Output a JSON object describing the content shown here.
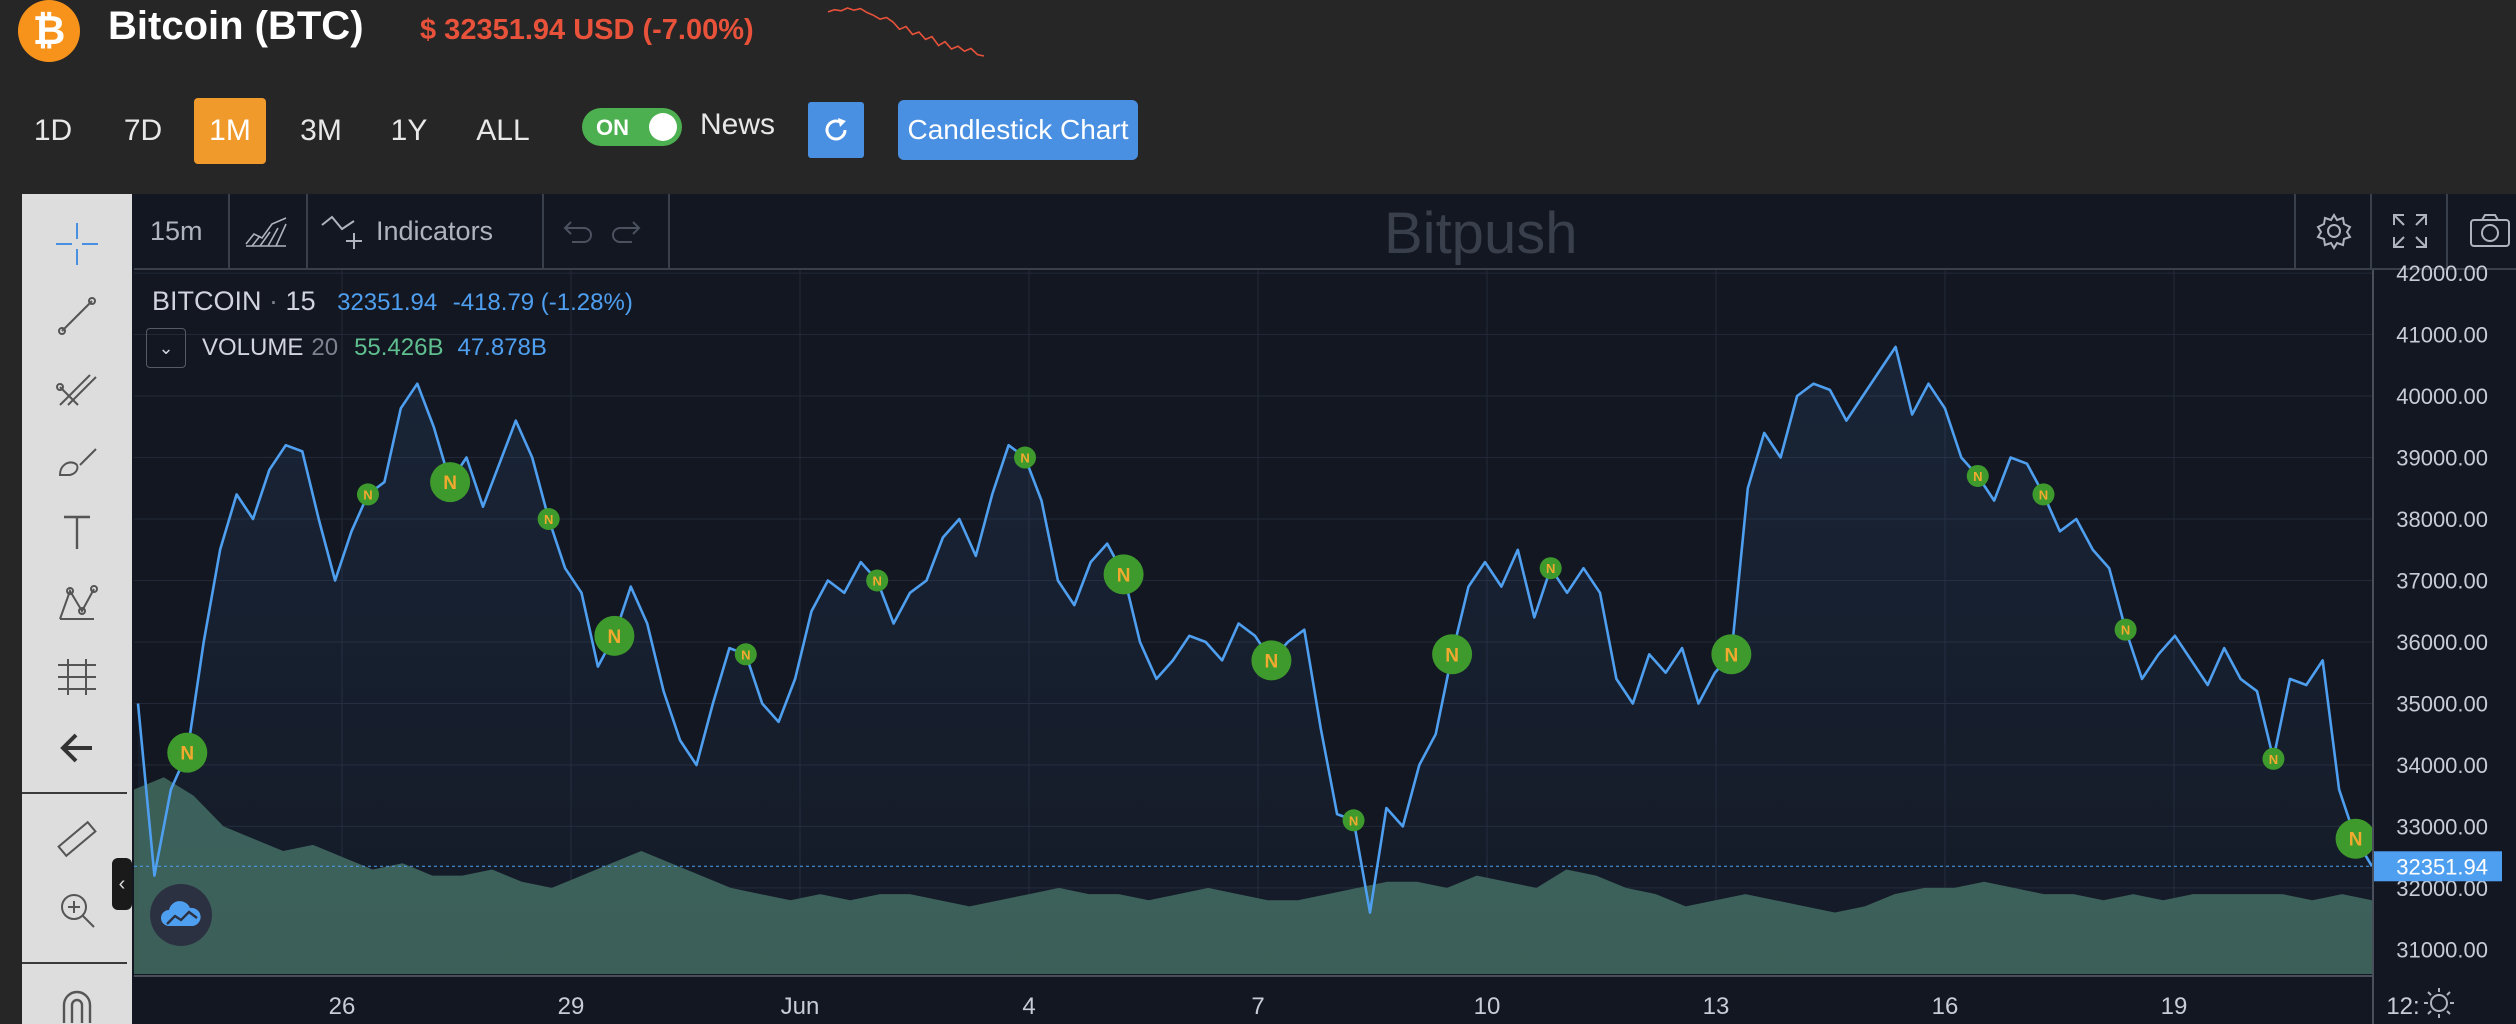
{
  "header": {
    "coin_logo_glyph": "₿",
    "coin_title": "Bitcoin (BTC)",
    "price_text": "$ 32351.94 USD (-7.00%)",
    "price_color": "#e8523b",
    "sparkline_values": [
      40.2,
      40.6,
      40.4,
      40.9,
      40.5,
      40.8,
      40.1,
      39.6,
      38.9,
      39.2,
      38.4,
      37.1,
      37.6,
      36.2,
      36.6,
      35.3,
      35.8,
      34.2,
      34.9,
      33.6,
      34.1,
      33.2,
      33.7,
      32.6,
      32.35
    ]
  },
  "ranges": {
    "items": [
      {
        "label": "1D",
        "active": false
      },
      {
        "label": "7D",
        "active": false
      },
      {
        "label": "1M",
        "active": true
      },
      {
        "label": "3M",
        "active": false
      },
      {
        "label": "1Y",
        "active": false
      },
      {
        "label": "ALL",
        "active": false
      }
    ],
    "accent_color": "#f19a2c"
  },
  "controls": {
    "news_toggle_state": "ON",
    "news_label": "News",
    "refresh_icon": "refresh-icon",
    "candlestick_label": "Candlestick Chart",
    "button_color": "#4a90e2"
  },
  "left_toolbar": {
    "tools": [
      "crosshair-icon",
      "trend-line-icon",
      "pitchfork-icon",
      "brush-icon",
      "text-icon",
      "pattern-icon",
      "measure-icon",
      "back-arrow-icon",
      "ruler-icon",
      "zoom-in-icon",
      "magnet-icon"
    ],
    "collapse_glyph": "‹"
  },
  "top_toolbar": {
    "interval": "15m",
    "chart_type_icon": "area-chart-icon",
    "indicators_label": "Indicators",
    "undo_icon": "undo-icon",
    "redo_icon": "redo-icon",
    "watermark": "Bitpush",
    "settings_icon": "gear-icon",
    "fullscreen_icon": "fullscreen-icon",
    "snapshot_icon": "camera-icon"
  },
  "legend": {
    "symbol": "BITCOIN",
    "separator": "·",
    "interval": "15",
    "last": "32351.94",
    "change": "-418.79 (-1.28%)",
    "volume_label": "VOLUME",
    "volume_length": "20",
    "volume_value": "55.426B",
    "volume_ma": "47.878B"
  },
  "chart_data": {
    "type": "area",
    "x_tick_labels": [
      "26",
      "29",
      "Jun",
      "4",
      "7",
      "10",
      "13",
      "16",
      "19",
      "12:"
    ],
    "y_tick_labels": [
      "42000.00",
      "41000.00",
      "40000.00",
      "39000.00",
      "38000.00",
      "37000.00",
      "36000.00",
      "35000.00",
      "34000.00",
      "33000.00",
      "32000.00",
      "31000.00"
    ],
    "ylim": [
      30600,
      42050
    ],
    "last_price_label": "32351.94",
    "last_price": 32351.94,
    "series": [
      {
        "values": [
          35000,
          32200,
          33600,
          34200,
          36000,
          37500,
          38400,
          38000,
          38800,
          39200,
          39100,
          38000,
          37000,
          37800,
          38400,
          38600,
          39800,
          40200,
          39500,
          38600,
          39000,
          38200,
          38900,
          39600,
          39000,
          38000,
          37200,
          36800,
          35600,
          36100,
          36900,
          36300,
          35200,
          34400,
          34000,
          35000,
          35900,
          35800,
          35000,
          34700,
          35400,
          36500,
          37000,
          36800,
          37300,
          37000,
          36300,
          36800,
          37000,
          37700,
          38000,
          37400,
          38400,
          39200,
          39000,
          38300,
          37000,
          36600,
          37300,
          37600,
          37100,
          36000,
          35400,
          35700,
          36100,
          36000,
          35700,
          36300,
          36100,
          35700,
          36000,
          36200,
          34600,
          33200,
          33100,
          31600,
          33300,
          33000,
          34000,
          34500,
          35800,
          36900,
          37300,
          36900,
          37500,
          36400,
          37200,
          36800,
          37200,
          36800,
          35400,
          35000,
          35800,
          35500,
          35900,
          35000,
          35500,
          35800,
          38500,
          39400,
          39000,
          40000,
          40200,
          40100,
          39600,
          40000,
          40400,
          40800,
          39700,
          40200,
          39800,
          39000,
          38700,
          38300,
          39000,
          38900,
          38400,
          37800,
          38000,
          37500,
          37200,
          36200,
          35400,
          35800,
          36100,
          35700,
          35300,
          35900,
          35400,
          35200,
          34100,
          35400,
          35300,
          35700,
          33600,
          32800,
          32351.94
        ]
      }
    ],
    "volume_series": [
      33.6,
      33.8,
      33.5,
      33.0,
      32.8,
      32.6,
      32.7,
      32.5,
      32.3,
      32.4,
      32.2,
      32.2,
      32.3,
      32.1,
      32.0,
      32.2,
      32.4,
      32.6,
      32.4,
      32.2,
      32.0,
      31.9,
      31.8,
      31.9,
      31.8,
      31.9,
      31.9,
      31.8,
      31.7,
      31.8,
      31.9,
      32.0,
      31.9,
      31.9,
      31.8,
      31.9,
      32.0,
      31.9,
      31.8,
      31.8,
      31.9,
      32.0,
      32.1,
      32.1,
      32.0,
      32.2,
      32.1,
      32.0,
      32.3,
      32.2,
      32.0,
      31.9,
      31.7,
      31.8,
      31.9,
      31.8,
      31.7,
      31.6,
      31.7,
      31.9,
      32.0,
      32.0,
      32.1,
      32.0,
      31.9,
      31.9,
      31.8,
      31.9,
      31.8,
      31.9,
      31.9,
      31.9,
      31.9,
      31.8,
      31.9,
      31.8
    ],
    "news_markers": [
      {
        "i": 3,
        "big": true
      },
      {
        "i": 14,
        "big": false
      },
      {
        "i": 19,
        "big": true
      },
      {
        "i": 25,
        "big": false
      },
      {
        "i": 29,
        "big": true
      },
      {
        "i": 37,
        "big": false
      },
      {
        "i": 45,
        "big": false
      },
      {
        "i": 54,
        "big": false
      },
      {
        "i": 60,
        "big": true
      },
      {
        "i": 69,
        "big": true
      },
      {
        "i": 74,
        "big": false
      },
      {
        "i": 80,
        "big": true
      },
      {
        "i": 86,
        "big": false
      },
      {
        "i": 97,
        "big": true
      },
      {
        "i": 112,
        "big": false
      },
      {
        "i": 116,
        "big": false
      },
      {
        "i": 121,
        "big": false
      },
      {
        "i": 130,
        "big": false
      },
      {
        "i": 135,
        "big": true
      }
    ],
    "news_marker_label": "N",
    "line_color": "#4f9ff0",
    "volume_color": "#3b5e55",
    "marker_color": "#3e9a2c",
    "marker_text_color": "#f2a930"
  }
}
